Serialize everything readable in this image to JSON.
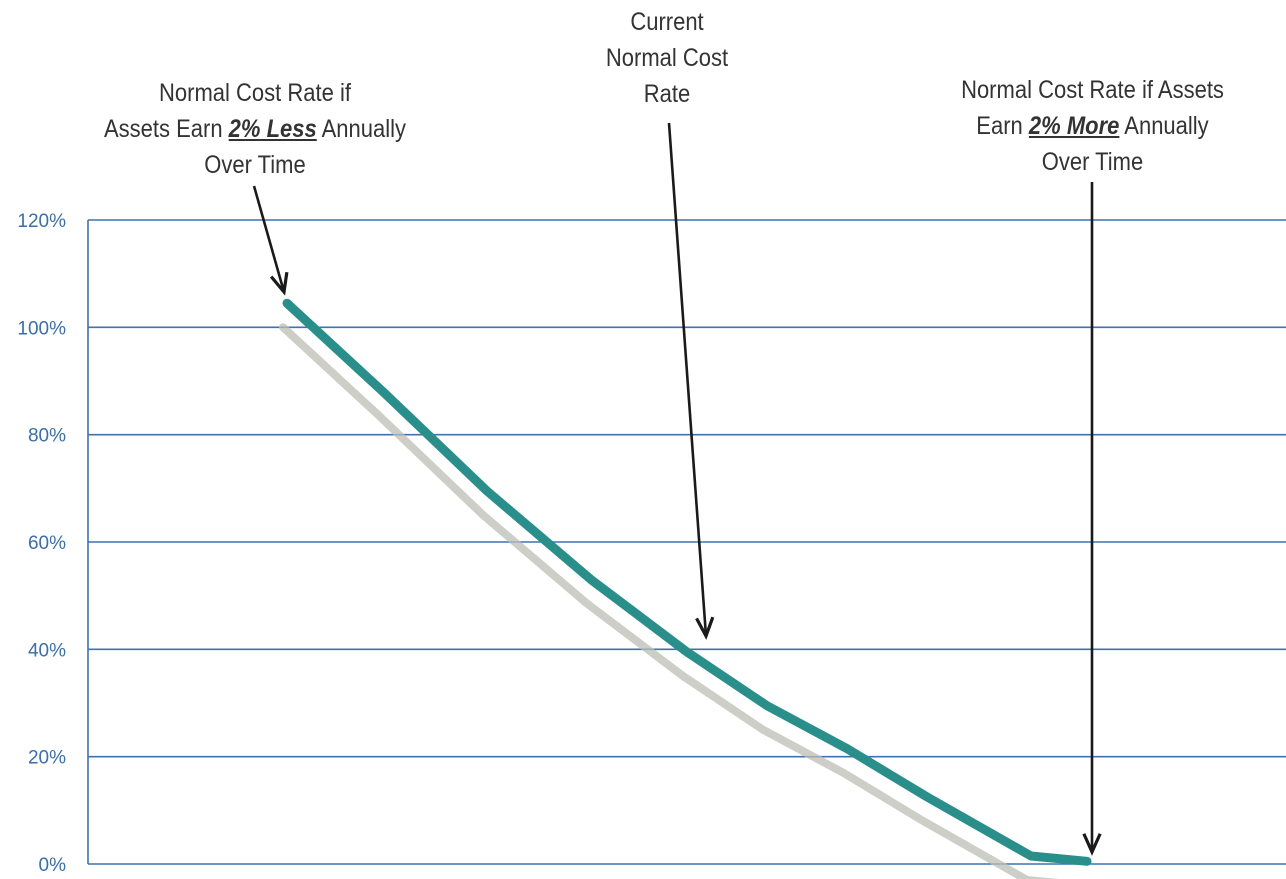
{
  "chart_data": {
    "type": "line",
    "ylim": [
      0,
      1.2
    ],
    "yticks": [
      "0%",
      "20%",
      "40%",
      "60%",
      "80%",
      "100%",
      "120%"
    ],
    "grid": true,
    "series": [
      {
        "points": [
          {
            "x": 0.0,
            "y": 1.045
          },
          {
            "x": 0.12,
            "y": 0.88
          },
          {
            "x": 0.25,
            "y": 0.695
          },
          {
            "x": 0.38,
            "y": 0.53
          },
          {
            "x": 0.5,
            "y": 0.395
          },
          {
            "x": 0.6,
            "y": 0.295
          },
          {
            "x": 0.7,
            "y": 0.215
          },
          {
            "x": 0.8,
            "y": 0.125
          },
          {
            "x": 0.93,
            "y": 0.015
          },
          {
            "x": 1.0,
            "y": 0.005
          }
        ]
      }
    ],
    "annotations": [
      {
        "lines": [
          "Normal Cost Rate if",
          "Assets Earn {2% Less} Annually",
          "Over Time"
        ],
        "emphasis": "2% Less"
      },
      {
        "lines": [
          "Current",
          "Normal Cost",
          "Rate"
        ]
      },
      {
        "lines": [
          "Normal Cost Rate if Assets",
          "Earn {2% More} Annually",
          "Over Time"
        ],
        "emphasis": "2% More"
      }
    ],
    "colors": {
      "line": "#2a8f8a",
      "shadow": "#bdbdb5",
      "grid": "#3f72b0",
      "tick": "#3b6fa6",
      "arrow": "#1a1a1a"
    }
  }
}
